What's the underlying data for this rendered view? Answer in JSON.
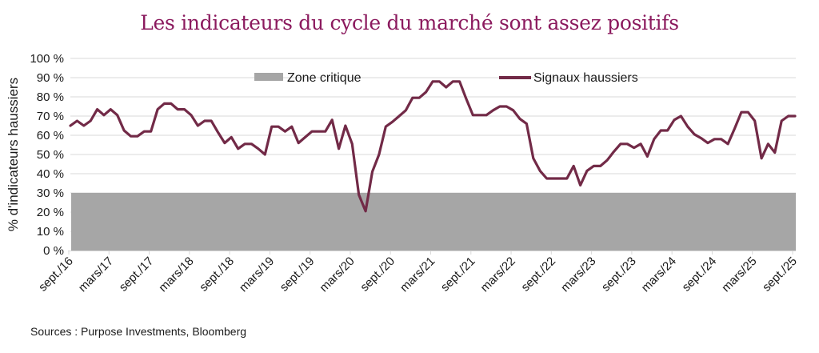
{
  "chart_data": {
    "type": "line",
    "title": "Les indicateurs du cycle du marché sont assez positifs",
    "xlabel": "",
    "ylabel": "% d'indicateurs haussiers",
    "ylim": [
      0,
      100
    ],
    "yticks": [
      0,
      10,
      20,
      30,
      40,
      50,
      60,
      70,
      80,
      90,
      100
    ],
    "ytick_suffix": " %",
    "grid": true,
    "legend_position": "top-center",
    "start_month": "2016-09",
    "end_month": "2025-09",
    "xtick_labels": [
      "sept./16",
      "mars/17",
      "sept./17",
      "mars/18",
      "sept./18",
      "mars/19",
      "sept./19",
      "mars/20",
      "sept./20",
      "mars/21",
      "sept./21",
      "mars/22",
      "sept./22",
      "mars/23",
      "sept./23",
      "mars/24",
      "sept./24",
      "mars/25",
      "sept./25"
    ],
    "bands": [
      {
        "name": "Zone critique",
        "from": 0,
        "to": 30,
        "color": "#a6a6a6"
      }
    ],
    "series": [
      {
        "name": "Signaux haussiers",
        "color": "#722a47",
        "values": [
          65,
          67.5,
          65,
          67.5,
          73.5,
          70.5,
          73.5,
          70.5,
          62.5,
          59.5,
          59.5,
          62,
          62,
          73.5,
          76.5,
          76.5,
          73.5,
          73.5,
          70.5,
          65,
          67.5,
          67.5,
          61.5,
          56,
          59,
          53,
          55.5,
          55.5,
          53,
          50,
          64.5,
          64.5,
          62,
          64.5,
          56,
          59,
          62,
          62,
          62,
          68,
          53,
          65,
          55.5,
          29,
          20.5,
          41,
          50,
          64.5,
          67,
          70,
          73,
          79.5,
          79.5,
          82.5,
          88,
          88,
          85,
          88,
          88,
          79,
          70.5,
          70.5,
          70.5,
          73,
          75,
          75,
          73,
          68.5,
          66,
          48,
          41.5,
          37.5,
          37.5,
          37.5,
          37.5,
          44,
          34,
          41.5,
          44,
          44,
          47,
          51.5,
          55.5,
          55.5,
          53.5,
          55.5,
          49,
          58,
          62.5,
          62.5,
          68,
          70,
          64.5,
          60.5,
          58.5,
          56,
          58,
          58,
          55.5,
          63.5,
          72,
          72,
          67.5,
          48,
          55.5,
          51,
          67.5,
          70,
          70
        ]
      }
    ]
  },
  "footer": {
    "source": "Sources : Purpose Investments, Bloomberg"
  }
}
